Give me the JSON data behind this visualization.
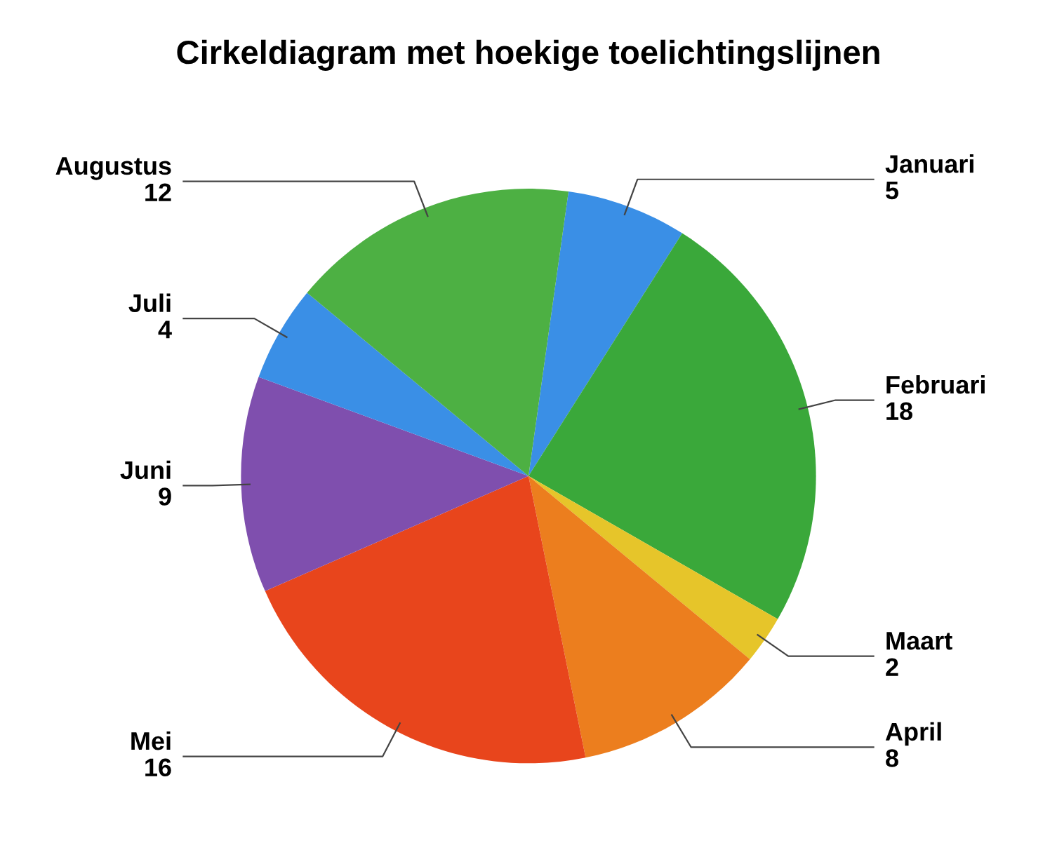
{
  "chart_data": {
    "type": "pie",
    "title": "Cirkeldiagram met hoekige toelichtingslijnen",
    "categories": [
      "Januari",
      "Februari",
      "Maart",
      "April",
      "Mei",
      "Juni",
      "Juli",
      "Augustus"
    ],
    "values": [
      5,
      18,
      2,
      8,
      16,
      9,
      4,
      12
    ],
    "colors": [
      "#3a8fe6",
      "#3aa83a",
      "#e6c52a",
      "#ec7e1e",
      "#e8451c",
      "#7f4fae",
      "#3a8fe6",
      "#4db043"
    ],
    "data_labels": true
  }
}
